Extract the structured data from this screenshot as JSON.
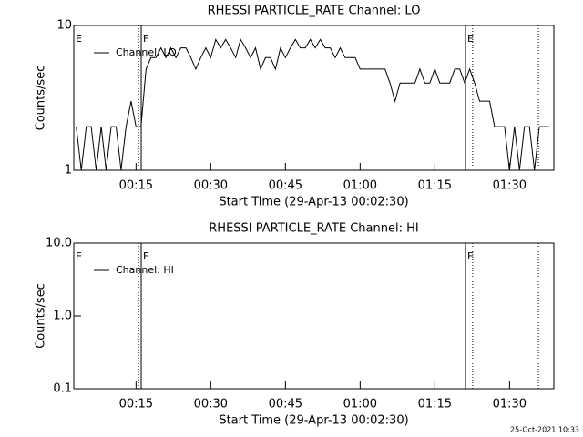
{
  "chart_data": [
    {
      "type": "line",
      "title": "RHESSI PARTICLE_RATE Channel: LO",
      "xlabel": "Start Time (29-Apr-13 00:02:30)",
      "ylabel": "Counts/sec",
      "log_y": true,
      "ylim": [
        1,
        10
      ],
      "yticks": [
        1,
        10
      ],
      "xlim": [
        2.5,
        98.9
      ],
      "xticks": [
        {
          "value": 15,
          "label": "00:15"
        },
        {
          "value": 30,
          "label": "00:30"
        },
        {
          "value": 45,
          "label": "00:45"
        },
        {
          "value": 60,
          "label": "01:00"
        },
        {
          "value": 75,
          "label": "01:15"
        },
        {
          "value": 90,
          "label": "01:30"
        }
      ],
      "x": [
        3,
        4,
        5,
        6,
        7,
        8,
        9,
        10,
        11,
        12,
        13,
        14,
        15,
        16,
        17,
        18,
        19,
        20,
        21,
        22,
        23,
        24,
        25,
        26,
        27,
        28,
        29,
        30,
        31,
        32,
        33,
        34,
        35,
        36,
        37,
        38,
        39,
        40,
        41,
        42,
        43,
        44,
        45,
        46,
        47,
        48,
        49,
        50,
        51,
        52,
        53,
        54,
        55,
        56,
        57,
        58,
        59,
        60,
        61,
        62,
        63,
        64,
        65,
        66,
        67,
        68,
        69,
        70,
        71,
        72,
        73,
        74,
        75,
        76,
        77,
        78,
        79,
        80,
        81,
        82,
        83,
        84,
        85,
        86,
        87,
        88,
        89,
        90,
        91,
        92,
        93,
        94,
        95,
        96,
        97,
        98
      ],
      "series": [
        {
          "name": "Channel: LO",
          "color": "#000000",
          "values": [
            2,
            1,
            2,
            2,
            1,
            2,
            1,
            2,
            2,
            1,
            2,
            3,
            2,
            2,
            5,
            6,
            6,
            7,
            6,
            7,
            6,
            7,
            7,
            6,
            5,
            6,
            7,
            6,
            8,
            7,
            8,
            7,
            6,
            8,
            7,
            6,
            7,
            5,
            6,
            6,
            5,
            7,
            6,
            7,
            8,
            7,
            7,
            8,
            7,
            8,
            7,
            7,
            6,
            7,
            6,
            6,
            6,
            5,
            5,
            5,
            5,
            5,
            5,
            4,
            3,
            4,
            4,
            4,
            4,
            5,
            4,
            4,
            5,
            4,
            4,
            4,
            5,
            5,
            4,
            5,
            4,
            3,
            3,
            3,
            2,
            2,
            2,
            1,
            2,
            1,
            2,
            2,
            1,
            2,
            2,
            2
          ]
        }
      ],
      "vlines": [
        {
          "x": 15.5,
          "style": "dotted"
        },
        {
          "x": 16.04,
          "style": "solid"
        },
        {
          "x": 81.16,
          "style": "solid"
        },
        {
          "x": 82.6,
          "style": "dotted"
        },
        {
          "x": 95.8,
          "style": "dotted"
        }
      ],
      "flags": [
        {
          "x": 2.5,
          "text": "E"
        },
        {
          "x": 16.04,
          "text": "F"
        },
        {
          "x": 81.16,
          "text": "E"
        }
      ]
    },
    {
      "type": "line",
      "title": "RHESSI PARTICLE_RATE Channel: HI",
      "xlabel": "Start Time (29-Apr-13 00:02:30)",
      "ylabel": "Counts/sec",
      "log_y": true,
      "ylim": [
        0.1,
        10
      ],
      "yticks": [
        0.1,
        {
          "value": 1,
          "label": "1.0"
        },
        {
          "value": 10,
          "label": "10.0"
        }
      ],
      "xlim": [
        2.5,
        98.9
      ],
      "xticks": [
        {
          "value": 15,
          "label": "00:15"
        },
        {
          "value": 30,
          "label": "00:30"
        },
        {
          "value": 45,
          "label": "00:45"
        },
        {
          "value": 60,
          "label": "01:00"
        },
        {
          "value": 75,
          "label": "01:15"
        },
        {
          "value": 90,
          "label": "01:30"
        }
      ],
      "x": [],
      "series": [
        {
          "name": "Channel: HI",
          "color": "#000000",
          "values": []
        }
      ],
      "vlines": [
        {
          "x": 15.5,
          "style": "dotted"
        },
        {
          "x": 16.04,
          "style": "solid"
        },
        {
          "x": 81.16,
          "style": "solid"
        },
        {
          "x": 82.6,
          "style": "dotted"
        },
        {
          "x": 95.8,
          "style": "dotted"
        }
      ],
      "flags": [
        {
          "x": 2.5,
          "text": "E"
        },
        {
          "x": 16.04,
          "text": "F"
        },
        {
          "x": 81.16,
          "text": "E"
        }
      ]
    }
  ],
  "footer": "25-Oct-2021 10:33"
}
